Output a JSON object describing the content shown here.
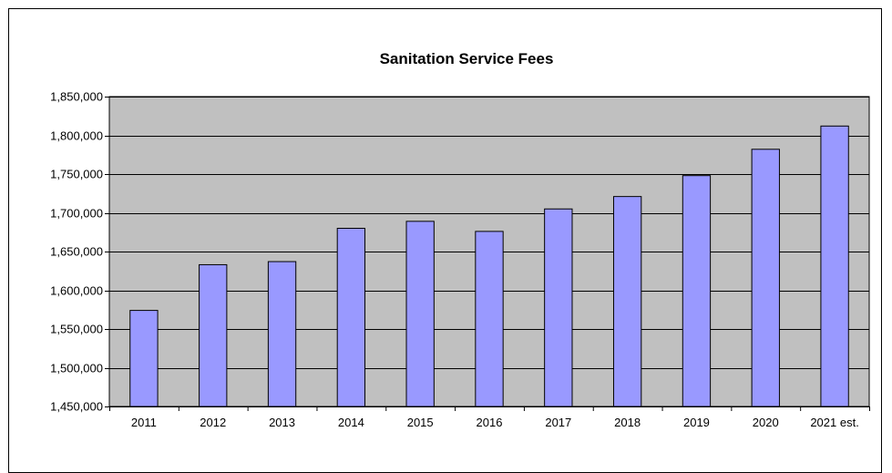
{
  "chart_data": {
    "type": "bar",
    "title": "Sanitation Service Fees",
    "xlabel": "",
    "ylabel": "",
    "categories": [
      "2011",
      "2012",
      "2013",
      "2014",
      "2015",
      "2016",
      "2017",
      "2018",
      "2019",
      "2020",
      "2021 est."
    ],
    "values": [
      1574000,
      1633000,
      1637000,
      1680000,
      1689000,
      1676000,
      1705000,
      1721000,
      1748000,
      1782000,
      1812000
    ],
    "ylim": [
      1450000,
      1850000
    ],
    "yticks": [
      1450000,
      1500000,
      1550000,
      1600000,
      1650000,
      1700000,
      1750000,
      1800000,
      1850000
    ],
    "ytick_labels": [
      "1,450,000",
      "1,500,000",
      "1,550,000",
      "1,600,000",
      "1,650,000",
      "1,700,000",
      "1,750,000",
      "1,800,000",
      "1,850,000"
    ],
    "grid": true,
    "legend": "none",
    "colors": {
      "bar_fill": "#9999ff",
      "bar_stroke": "#000000",
      "plot_background": "#c0c0c0",
      "gridline": "#000000"
    }
  }
}
